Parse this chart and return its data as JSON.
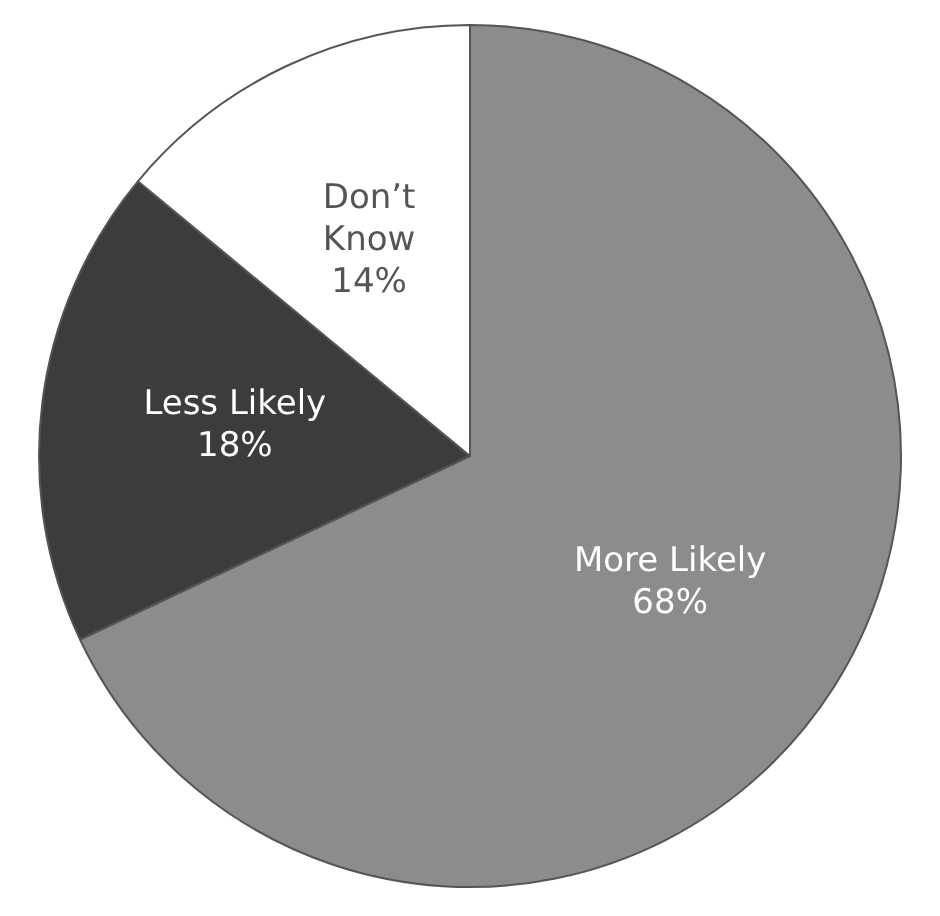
{
  "chart_data": {
    "type": "pie",
    "categories": [
      "More Likely",
      "Less Likely",
      "Don’t Know"
    ],
    "values": [
      68,
      18,
      14
    ],
    "colors": [
      "#8c8c8c",
      "#3c3c3c",
      "#ffffff"
    ],
    "value_labels": [
      "68%",
      "18%",
      "14%"
    ],
    "legend": false
  }
}
